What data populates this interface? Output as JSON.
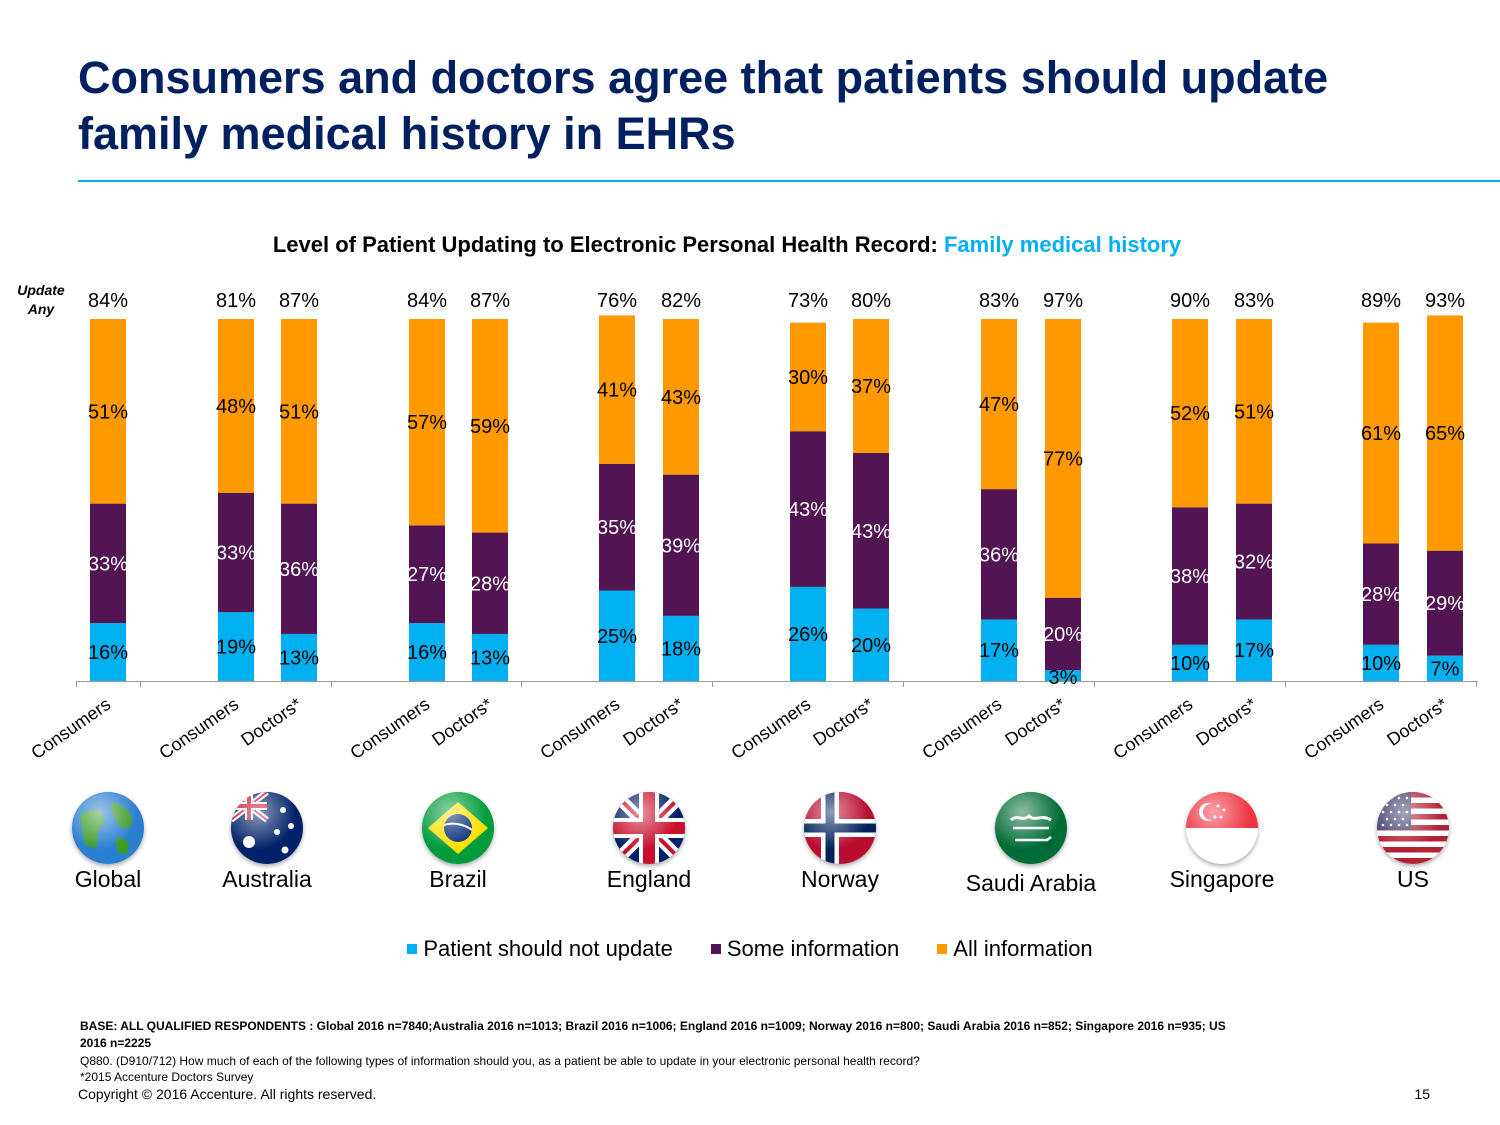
{
  "slide": {
    "title": "Consumers and doctors agree that patients should update family medical history in EHRs",
    "accent_color": "#00B0F0",
    "title_color": "#002060"
  },
  "chart_data": {
    "type": "bar",
    "stacked": true,
    "title": "Level of Patient Updating to Electronic Personal Health Record:",
    "title_highlight": "Family medical history",
    "total_label": "Update Any",
    "ylim": [
      0,
      100
    ],
    "grid": false,
    "legend_position": "bottom",
    "groups": [
      {
        "country": "Global",
        "flag": "globe-icon",
        "bars": [
          {
            "category": "Consumers",
            "total": "84%",
            "values": [
              16,
              33,
              51
            ]
          }
        ]
      },
      {
        "country": "Australia",
        "flag": "australia-flag-icon",
        "bars": [
          {
            "category": "Consumers",
            "total": "81%",
            "values": [
              19,
              33,
              48
            ]
          },
          {
            "category": "Doctors*",
            "total": "87%",
            "values": [
              13,
              36,
              51
            ]
          }
        ]
      },
      {
        "country": "Brazil",
        "flag": "brazil-flag-icon",
        "bars": [
          {
            "category": "Consumers",
            "total": "84%",
            "values": [
              16,
              27,
              57
            ]
          },
          {
            "category": "Doctors*",
            "total": "87%",
            "values": [
              13,
              28,
              59
            ]
          }
        ]
      },
      {
        "country": "England",
        "flag": "uk-flag-icon",
        "bars": [
          {
            "category": "Consumers",
            "total": "76%",
            "values": [
              25,
              35,
              41
            ]
          },
          {
            "category": "Doctors*",
            "total": "82%",
            "values": [
              18,
              39,
              43
            ]
          }
        ]
      },
      {
        "country": "Norway",
        "flag": "norway-flag-icon",
        "bars": [
          {
            "category": "Consumers",
            "total": "73%",
            "values": [
              26,
              43,
              30
            ]
          },
          {
            "category": "Doctors*",
            "total": "80%",
            "values": [
              20,
              43,
              37
            ]
          }
        ]
      },
      {
        "country": "Saudi Arabia",
        "flag": "saudi-arabia-flag-icon",
        "bars": [
          {
            "category": "Consumers",
            "total": "83%",
            "values": [
              17,
              36,
              47
            ]
          },
          {
            "category": "Doctors*",
            "total": "97%",
            "values": [
              3,
              20,
              77
            ]
          }
        ]
      },
      {
        "country": "Singapore",
        "flag": "singapore-flag-icon",
        "bars": [
          {
            "category": "Consumers",
            "total": "90%",
            "values": [
              10,
              38,
              52
            ]
          },
          {
            "category": "Doctors*",
            "total": "83%",
            "values": [
              17,
              32,
              51
            ]
          }
        ]
      },
      {
        "country": "US",
        "flag": "us-flag-icon",
        "bars": [
          {
            "category": "Consumers",
            "total": "89%",
            "values": [
              10,
              28,
              61
            ]
          },
          {
            "category": "Doctors*",
            "total": "93%",
            "values": [
              7,
              29,
              65
            ]
          }
        ]
      }
    ],
    "series": [
      {
        "name": "Patient should not update",
        "color": "#00B0F0"
      },
      {
        "name": "Some information",
        "color": "#521452"
      },
      {
        "name": "All information",
        "color": "#FF9900"
      }
    ]
  },
  "footer": {
    "base": "BASE: ALL QUALIFIED RESPONDENTS : Global 2016 n=7840;Australia 2016 n=1013; Brazil  2016 n=1006; England  2016 n=1009; Norway  2016 n=800; Saudi Arabia 2016 n=852; Singapore  2016 n=935; US 2016 n=2225",
    "question": "Q880. (D910/712)  How much of each of the following types of information should you, as a patient be able to update in your electronic personal health record?",
    "source": "*2015 Accenture Doctors Survey",
    "copyright": "Copyright © 2016 Accenture. All rights reserved.",
    "page_number": "15"
  }
}
